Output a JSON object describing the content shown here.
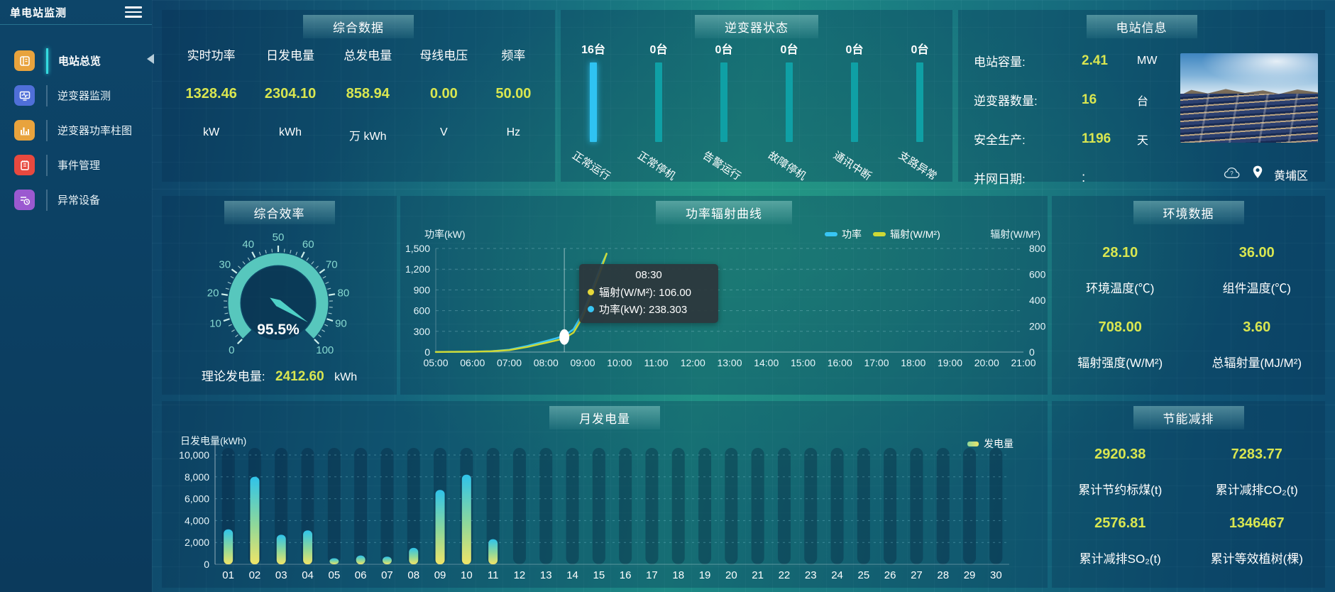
{
  "app": {
    "title": "单电站监测"
  },
  "sidebar": {
    "items": [
      {
        "label": "电站总览",
        "icon_color": "#e8a33d",
        "active": true
      },
      {
        "label": "逆变器监测",
        "icon_color": "#4f6fd8",
        "active": false
      },
      {
        "label": "逆变器功率柱图",
        "icon_color": "#e8a33d",
        "active": false
      },
      {
        "label": "事件管理",
        "icon_color": "#e8493f",
        "active": false
      },
      {
        "label": "异常设备",
        "icon_color": "#9b59d0",
        "active": false
      }
    ]
  },
  "overview_panel": {
    "title": "综合数据",
    "metrics": [
      {
        "label": "实时功率",
        "value": "1328.46",
        "unit": "kW"
      },
      {
        "label": "日发电量",
        "value": "2304.10",
        "unit": "kWh"
      },
      {
        "label": "总发电量",
        "value": "858.94",
        "unit": "万 kWh"
      },
      {
        "label": "母线电压",
        "value": "0.00",
        "unit": "V"
      },
      {
        "label": "频率",
        "value": "50.00",
        "unit": "Hz"
      }
    ]
  },
  "inverter_panel": {
    "title": "逆变器状态",
    "statuses": [
      {
        "count": "16台",
        "label": "正常运行",
        "bar_color": "#2fc3f2"
      },
      {
        "count": "0台",
        "label": "正常停机",
        "bar_color": "#0fa0a5"
      },
      {
        "count": "0台",
        "label": "告警运行",
        "bar_color": "#0fa0a5"
      },
      {
        "count": "0台",
        "label": "故障停机",
        "bar_color": "#0fa0a5"
      },
      {
        "count": "0台",
        "label": "通讯中断",
        "bar_color": "#0fa0a5"
      },
      {
        "count": "0台",
        "label": "支路异常",
        "bar_color": "#0fa0a5"
      }
    ]
  },
  "station_panel": {
    "title": "电站信息",
    "rows": [
      {
        "label": "电站容量:",
        "value": "2.41",
        "unit": "MW"
      },
      {
        "label": "逆变器数量:",
        "value": "16",
        "unit": "台"
      },
      {
        "label": "安全生产:",
        "value": "1196",
        "unit": "天"
      },
      {
        "label": "并网日期:",
        "value": ":",
        "unit": ""
      }
    ],
    "location": "黄埔区"
  },
  "efficiency_panel": {
    "title": "综合效率",
    "theory_label": "理论发电量:",
    "theory_value": "2412.60",
    "theory_unit": "kWh"
  },
  "curve_panel": {
    "title": "功率辐射曲线",
    "left_axis_label": "功率(kW)",
    "right_axis_label": "辐射(W/M²)",
    "legend": [
      {
        "name": "功率",
        "color": "#38c6f4"
      },
      {
        "name": "辐射(W/M²)",
        "color": "#cdd935"
      }
    ],
    "tooltip": {
      "time": "08:30",
      "items": [
        {
          "color": "#e6d93a",
          "text": "辐射(W/M²): 106.00"
        },
        {
          "color": "#38c6f4",
          "text": "功率(kW): 238.303"
        }
      ]
    }
  },
  "environment_panel": {
    "title": "环境数据",
    "cells": [
      {
        "value": "28.10",
        "label": "环境温度(℃)"
      },
      {
        "value": "36.00",
        "label": "组件温度(℃)"
      },
      {
        "value": "708.00",
        "label": "辐射强度(W/M²)"
      },
      {
        "value": "3.60",
        "label": "总辐射量(MJ/M²)"
      }
    ]
  },
  "month_panel": {
    "title": "月发电量",
    "ylabel": "日发电量(kWh)",
    "legend": "发电量"
  },
  "saving_panel": {
    "title": "节能减排",
    "cells": [
      {
        "value": "2920.38",
        "label": "累计节约标煤(t)"
      },
      {
        "value": "7283.77",
        "label": "累计减排CO₂(t)"
      },
      {
        "value": "2576.81",
        "label": "累计减排SO₂(t)"
      },
      {
        "value": "1346467",
        "label": "累计等效植树(棵)"
      }
    ]
  },
  "chart_data": [
    {
      "type": "gauge",
      "panel": "efficiency",
      "value": 95.5,
      "value_label": "95.5%",
      "min": 0,
      "max": 100,
      "major_ticks": [
        0,
        10,
        20,
        30,
        40,
        50,
        60,
        70,
        80,
        90,
        100
      ],
      "color": "#57c7bd"
    },
    {
      "type": "line",
      "panel": "curve",
      "title": "功率辐射曲线",
      "x_hours": [
        5,
        5.5,
        6,
        6.5,
        7,
        7.5,
        8,
        8.25,
        8.5,
        8.75,
        9,
        9.25,
        9.5,
        9.65
      ],
      "series": [
        {
          "name": "功率",
          "axis": "left",
          "color": "#38c6f4",
          "values": [
            2,
            3,
            6,
            12,
            35,
            90,
            160,
            195,
            238.3,
            330,
            560,
            900,
            1250,
            1420
          ]
        },
        {
          "name": "辐射(W/M²)",
          "axis": "right",
          "color": "#cdd935",
          "values": [
            1,
            2,
            3,
            6,
            15,
            40,
            72,
            88,
            106,
            150,
            270,
            450,
            640,
            760
          ]
        }
      ],
      "left_axis": {
        "label": "功率(kW)",
        "min": 0,
        "max": 1500,
        "tick_labels": [
          "0",
          "300",
          "600",
          "900",
          "1,200",
          "1,500"
        ]
      },
      "right_axis": {
        "label": "辐射(W/M²)",
        "min": 0,
        "max": 800,
        "tick_labels": [
          "0",
          "200",
          "400",
          "600",
          "800"
        ]
      },
      "x_tick_labels": [
        "05:00",
        "06:00",
        "07:00",
        "08:00",
        "09:00",
        "10:00",
        "11:00",
        "12:00",
        "13:00",
        "14:00",
        "15:00",
        "16:00",
        "17:00",
        "18:00",
        "19:00",
        "20:00",
        "21:00"
      ],
      "highlight_hour": 8.5,
      "highlight": {
        "power": 238.3,
        "radiation": 106
      }
    },
    {
      "type": "bar",
      "panel": "month",
      "title": "月发电量",
      "categories": [
        "01",
        "02",
        "03",
        "04",
        "05",
        "06",
        "07",
        "08",
        "09",
        "10",
        "11",
        "12",
        "13",
        "14",
        "15",
        "16",
        "17",
        "18",
        "19",
        "20",
        "21",
        "22",
        "23",
        "24",
        "25",
        "26",
        "27",
        "28",
        "29",
        "30"
      ],
      "values": [
        3200,
        8000,
        2700,
        3100,
        550,
        800,
        700,
        1500,
        6800,
        8200,
        2300,
        0,
        0,
        0,
        0,
        0,
        0,
        0,
        0,
        0,
        0,
        0,
        0,
        0,
        0,
        0,
        0,
        0,
        0,
        0
      ],
      "ylim": [
        0,
        10000
      ],
      "ytick_labels": [
        "0",
        "2,000",
        "4,000",
        "6,000",
        "8,000",
        "10,000"
      ],
      "bar_gradient": [
        "#2fc3ea",
        "#8fd89a",
        "#efe468"
      ],
      "ylabel": "日发电量(kWh)",
      "legend": "发电量"
    }
  ]
}
